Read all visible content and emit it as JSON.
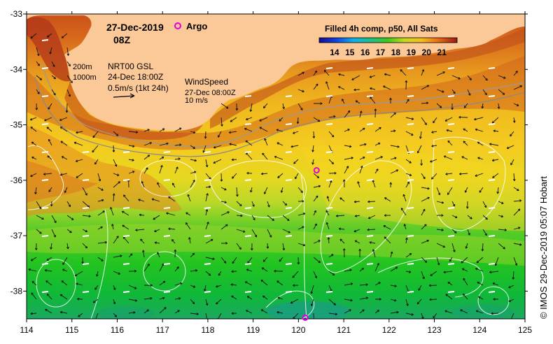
{
  "map": {
    "date_title": "27-Dec-2019",
    "time_title": "08Z",
    "argo_label": "Argo",
    "colorbar_title": "Filled 4h comp, p50, All Sats",
    "colorbar_ticks": [
      "14",
      "15",
      "16",
      "17",
      "18",
      "19",
      "20",
      "21"
    ],
    "colorbar_range": [
      13,
      22
    ],
    "legend_current": {
      "depth_200": "200m",
      "depth_1000": "1000m",
      "source": "NRT00 GSL",
      "time": "24-Dec 18:00Z",
      "scale": "0.5m/s (1kt 24h)"
    },
    "legend_wind": {
      "title": "WindSpeed",
      "time": "27-Dec 08:00Z",
      "scale": "10 m/s"
    },
    "x_ticks": [
      "114",
      "115",
      "116",
      "117",
      "118",
      "119",
      "120",
      "121",
      "122",
      "123",
      "124",
      "125"
    ],
    "y_ticks": [
      "-33",
      "-34",
      "-35",
      "-36",
      "-37",
      "-38"
    ],
    "lon_range": [
      114,
      125
    ],
    "lat_range": [
      -38.5,
      -33
    ],
    "credit": "© IMOS 29-Dec-2019 05:07 Hobart",
    "argo_floats": [
      {
        "lon": 120.4,
        "lat": -35.82
      },
      {
        "lon": 120.15,
        "lat": -38.48
      }
    ]
  },
  "colors": {
    "land": "#fbc898",
    "argo": "#e000e0",
    "warm": "#c83a10",
    "cool": "#20c020"
  }
}
